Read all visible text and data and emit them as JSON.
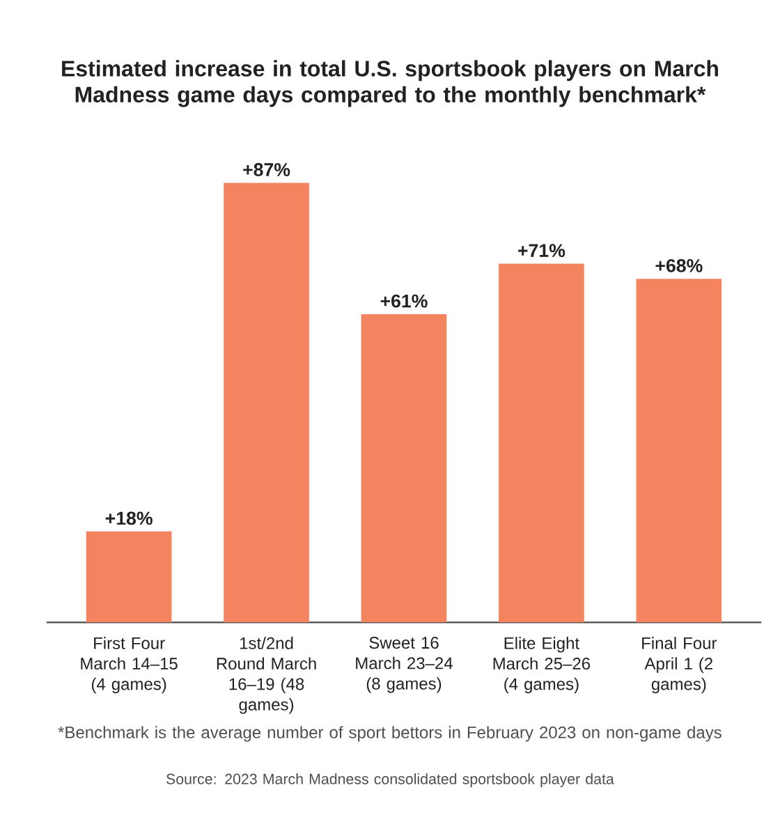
{
  "chart_data": {
    "type": "bar",
    "title": "Estimated increase in total U.S. sportsbook players on March Madness game days compared to the monthly benchmark*",
    "categories": [
      "First Four March 14–15 (4 games)",
      "1st/2nd Round March 16–19 (48 games)",
      "Sweet 16 March 23–24 (8 games)",
      "Elite Eight March 25–26 (4 games)",
      "Final Four April 1 (2 games)"
    ],
    "values": [
      18,
      87,
      61,
      71,
      68
    ],
    "value_labels": [
      "+18%",
      "+87%",
      "+61%",
      "+71%",
      "+68%"
    ],
    "color": "#f4845f",
    "annotations": [
      "*Benchmark is the average number of sport bettors in February 2023 on non-game days",
      "Source: 2023 March Madness consolidated sportsbook player data"
    ]
  }
}
